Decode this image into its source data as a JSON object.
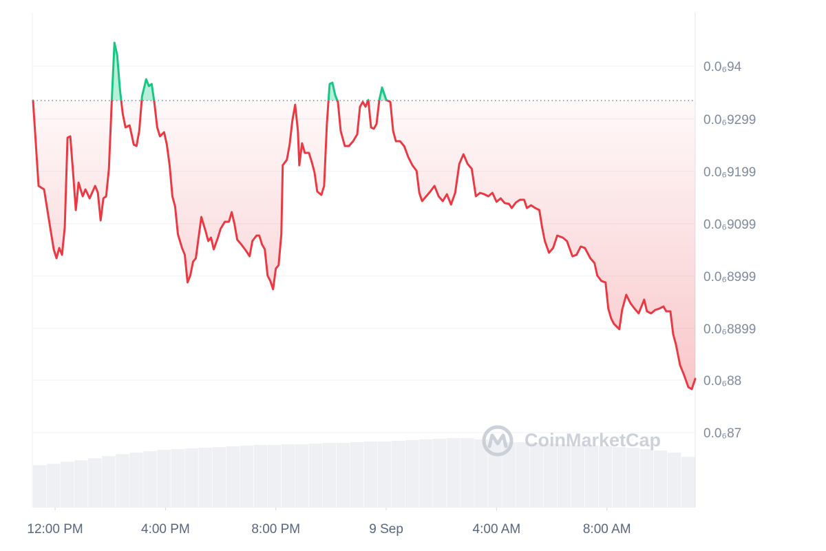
{
  "chart_data": {
    "type": "line",
    "watermark": "CoinMarketCap",
    "grid": true,
    "xlim": [
      11.2,
      35.2
    ],
    "xticks": [
      {
        "value": 12,
        "label": "12:00 PM"
      },
      {
        "value": 16,
        "label": "4:00 PM"
      },
      {
        "value": 20,
        "label": "8:00 PM"
      },
      {
        "value": 24,
        "label": "9 Sep"
      },
      {
        "value": 28,
        "label": "4:00 AM"
      },
      {
        "value": 32,
        "label": "8:00 AM"
      }
    ],
    "ylim": [
      8.5566e-07,
      9.5026e-07
    ],
    "yticks": [
      {
        "value": 9.4e-07,
        "label": "0.0₆94"
      },
      {
        "value": 9.299e-07,
        "label": "0.0₆9299"
      },
      {
        "value": 9.199e-07,
        "label": "0.0₆9199"
      },
      {
        "value": 9.099e-07,
        "label": "0.0₆9099"
      },
      {
        "value": 8.999e-07,
        "label": "0.0₆8999"
      },
      {
        "value": 8.899e-07,
        "label": "0.0₆8899"
      },
      {
        "value": 8.8e-07,
        "label": "0.0₆88"
      },
      {
        "value": 8.7e-07,
        "label": "0.0₆87"
      }
    ],
    "y2lim": [
      0,
      100
    ],
    "series": [
      {
        "color": "#ea3943",
        "color_above": "#16c784",
        "x": [
          11.2,
          11.4,
          11.6,
          11.8,
          11.95,
          12.05,
          12.15,
          12.25,
          12.35,
          12.45,
          12.55,
          12.65,
          12.75,
          12.85,
          13,
          13.1,
          13.25,
          13.45,
          13.55,
          13.65,
          13.75,
          13.85,
          13.95,
          14.05,
          14.15,
          14.25,
          14.35,
          14.45,
          14.55,
          14.7,
          14.85,
          14.95,
          15.05,
          15.15,
          15.3,
          15.4,
          15.5,
          15.6,
          15.7,
          15.8,
          15.95,
          16.05,
          16.15,
          16.25,
          16.35,
          16.45,
          16.6,
          16.7,
          16.8,
          16.9,
          17,
          17.1,
          17.2,
          17.3,
          17.45,
          17.55,
          17.65,
          17.75,
          17.9,
          18,
          18.15,
          18.3,
          18.4,
          18.5,
          18.6,
          18.75,
          18.9,
          19.05,
          19.15,
          19.3,
          19.4,
          19.5,
          19.6,
          19.7,
          19.8,
          19.9,
          20,
          20.1,
          20.2,
          20.25,
          20.4,
          20.5,
          20.6,
          20.7,
          20.8,
          20.85,
          20.95,
          21.05,
          21.2,
          21.3,
          21.4,
          21.5,
          21.65,
          21.75,
          21.85,
          21.95,
          22.05,
          22.15,
          22.25,
          22.35,
          22.5,
          22.65,
          22.8,
          22.95,
          23.05,
          23.15,
          23.25,
          23.35,
          23.45,
          23.55,
          23.65,
          23.75,
          23.85,
          24,
          24.15,
          24.25,
          24.35,
          24.5,
          24.65,
          24.8,
          24.95,
          25.1,
          25.2,
          25.3,
          25.45,
          25.6,
          25.75,
          25.9,
          26.05,
          26.2,
          26.35,
          26.5,
          26.65,
          26.8,
          26.95,
          27.1,
          27.25,
          27.4,
          27.55,
          27.7,
          27.85,
          28,
          28.15,
          28.3,
          28.45,
          28.55,
          28.7,
          28.85,
          29,
          29.1,
          29.25,
          29.4,
          29.55,
          29.65,
          29.75,
          29.9,
          30.05,
          30.2,
          30.4,
          30.55,
          30.75,
          30.9,
          31.05,
          31.2,
          31.4,
          31.55,
          31.65,
          31.8,
          31.95,
          32.05,
          32.15,
          32.25,
          32.45,
          32.55,
          32.7,
          32.85,
          33,
          33.15,
          33.35,
          33.45,
          33.6,
          33.75,
          33.9,
          34.05,
          34.15,
          34.3,
          34.4,
          34.5,
          34.65,
          34.8,
          34.95,
          35.075,
          35.2
        ],
        "values": [
          9.3342e-07,
          9.1711e-07,
          9.1645e-07,
          9.0987e-07,
          9.05e-07,
          9.0329e-07,
          9.0526e-07,
          9.0395e-07,
          9.0921e-07,
          9.2632e-07,
          9.2658e-07,
          9.1974e-07,
          9.125e-07,
          9.1776e-07,
          9.1513e-07,
          9.1645e-07,
          9.1474e-07,
          9.1711e-07,
          9.1579e-07,
          9.1053e-07,
          9.1474e-07,
          9.1513e-07,
          9.2039e-07,
          9.3289e-07,
          9.4447e-07,
          9.4211e-07,
          9.3553e-07,
          9.3092e-07,
          9.2829e-07,
          9.2868e-07,
          9.25e-07,
          9.2474e-07,
          9.2763e-07,
          9.3421e-07,
          9.375e-07,
          9.3618e-07,
          9.3658e-07,
          9.3289e-07,
          9.2829e-07,
          9.2658e-07,
          9.2737e-07,
          9.25e-07,
          9.2105e-07,
          9.1513e-07,
          9.1316e-07,
          9.0789e-07,
          9.0526e-07,
          9.0395e-07,
          8.9868e-07,
          9e-07,
          9.0263e-07,
          9.0329e-07,
          9.0724e-07,
          9.1118e-07,
          9.0855e-07,
          9.0658e-07,
          9.0724e-07,
          9.05e-07,
          9.0724e-07,
          9.0895e-07,
          9.1026e-07,
          9.1026e-07,
          9.1211e-07,
          9.0987e-07,
          9.0684e-07,
          9.0592e-07,
          9.0487e-07,
          9.0368e-07,
          9.0658e-07,
          9.0763e-07,
          9.0763e-07,
          9.0592e-07,
          9.05e-07,
          9e-07,
          8.9895e-07,
          8.9737e-07,
          9.0132e-07,
          9.0197e-07,
          9.0789e-07,
          9.2105e-07,
          9.2211e-07,
          9.25e-07,
          9.2961e-07,
          9.3263e-07,
          9.2763e-07,
          9.2105e-07,
          9.2526e-07,
          9.2342e-07,
          9.2342e-07,
          9.2171e-07,
          9.1974e-07,
          9.1605e-07,
          9.1539e-07,
          9.1711e-07,
          9.2895e-07,
          9.3658e-07,
          9.3684e-07,
          9.3447e-07,
          9.3316e-07,
          9.2763e-07,
          9.2474e-07,
          9.2474e-07,
          9.2566e-07,
          9.2697e-07,
          9.3224e-07,
          9.3316e-07,
          9.3224e-07,
          9.3355e-07,
          9.2829e-07,
          9.2803e-07,
          9.2895e-07,
          9.3355e-07,
          9.3592e-07,
          9.3355e-07,
          9.3316e-07,
          9.2763e-07,
          9.2566e-07,
          9.2566e-07,
          9.2474e-07,
          9.2263e-07,
          9.2105e-07,
          9.2e-07,
          9.1579e-07,
          9.1421e-07,
          9.1513e-07,
          9.1605e-07,
          9.1711e-07,
          9.1513e-07,
          9.1421e-07,
          9.1553e-07,
          9.1355e-07,
          9.1579e-07,
          9.2132e-07,
          9.2316e-07,
          9.2132e-07,
          9.2039e-07,
          9.1513e-07,
          9.1579e-07,
          9.1553e-07,
          9.1513e-07,
          9.1579e-07,
          9.1408e-07,
          9.1474e-07,
          9.1382e-07,
          9.1368e-07,
          9.1289e-07,
          9.1395e-07,
          9.1447e-07,
          9.1447e-07,
          9.1289e-07,
          9.1342e-07,
          9.1289e-07,
          9.125e-07,
          9.0921e-07,
          9.0658e-07,
          9.0434e-07,
          9.0526e-07,
          9.0763e-07,
          9.0724e-07,
          9.0658e-07,
          9.0368e-07,
          9.0395e-07,
          9.0553e-07,
          9.0526e-07,
          9.0329e-07,
          9.0237e-07,
          9e-07,
          8.9895e-07,
          8.9868e-07,
          8.9368e-07,
          8.9184e-07,
          8.9079e-07,
          8.8974e-07,
          8.9342e-07,
          8.9632e-07,
          8.9474e-07,
          8.9368e-07,
          8.9276e-07,
          8.9539e-07,
          8.9316e-07,
          8.9276e-07,
          8.9342e-07,
          8.9368e-07,
          8.9408e-07,
          8.9316e-07,
          8.9316e-07,
          8.8882e-07,
          8.8684e-07,
          8.8289e-07,
          8.8092e-07,
          8.7868e-07,
          8.7829e-07,
          8.8026e-07
        ]
      },
      {
        "axis": "y2",
        "color": "#eef0f3",
        "values": [
          61,
          63,
          66,
          68,
          71,
          74,
          77,
          79,
          81,
          83,
          84,
          85,
          86,
          87,
          88,
          89,
          90,
          90,
          91,
          91,
          92,
          93,
          93,
          94,
          95,
          95,
          96,
          97,
          98,
          99,
          100,
          100,
          98,
          95,
          94,
          94,
          93,
          92,
          91,
          90,
          89,
          88,
          87,
          86,
          84,
          82,
          79,
          73
        ]
      }
    ]
  }
}
